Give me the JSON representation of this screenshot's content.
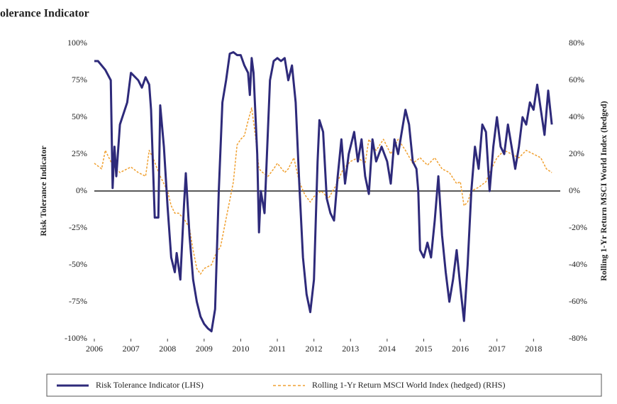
{
  "chart_data": {
    "type": "line",
    "title": "olerance Indicator",
    "ylabel": "Risk Tolerance Indicator",
    "y2label": "Rolling 1-Yr Return MSCI World Index (hedged)",
    "xlim": [
      2006,
      2018.73
    ],
    "xticks": [
      2006,
      2007,
      2008,
      2009,
      2010,
      2011,
      2012,
      2013,
      2014,
      2015,
      2016,
      2017,
      2018
    ],
    "ylim": [
      -100,
      100
    ],
    "yticks": [
      {
        "value": -100,
        "label": "-100%"
      },
      {
        "value": -75,
        "label": "-75%"
      },
      {
        "value": -50,
        "label": "-50%"
      },
      {
        "value": -25,
        "label": "-25%"
      },
      {
        "value": 0,
        "label": "0%"
      },
      {
        "value": 25,
        "label": "25%"
      },
      {
        "value": 50,
        "label": "50%"
      },
      {
        "value": 75,
        "label": "75%"
      },
      {
        "value": 100,
        "label": "100%"
      }
    ],
    "y2lim": [
      -80,
      80
    ],
    "y2ticks": [
      {
        "value": -80,
        "label": "-80%"
      },
      {
        "value": -60,
        "label": "-60%"
      },
      {
        "value": -40,
        "label": "-40%"
      },
      {
        "value": -20,
        "label": "-20%"
      },
      {
        "value": 0,
        "label": "0%"
      },
      {
        "value": 20,
        "label": "20%"
      },
      {
        "value": 40,
        "label": "40%"
      },
      {
        "value": 60,
        "label": "60%"
      },
      {
        "value": 80,
        "label": "80%"
      }
    ],
    "legend": "bottom",
    "series": [
      {
        "name": "Risk Tolerance Indicator (LHS)",
        "color": "#2e2a7a",
        "dash": false,
        "x": [
          2006.0,
          2006.1,
          2006.3,
          2006.45,
          2006.5,
          2006.55,
          2006.6,
          2006.7,
          2006.9,
          2007.0,
          2007.2,
          2007.3,
          2007.4,
          2007.5,
          2007.55,
          2007.65,
          2007.75,
          2007.8,
          2007.9,
          2008.0,
          2008.1,
          2008.2,
          2008.25,
          2008.35,
          2008.45,
          2008.5,
          2008.6,
          2008.7,
          2008.8,
          2008.9,
          2009.0,
          2009.1,
          2009.2,
          2009.3,
          2009.4,
          2009.5,
          2009.6,
          2009.7,
          2009.8,
          2009.9,
          2010.0,
          2010.1,
          2010.2,
          2010.25,
          2010.3,
          2010.35,
          2010.45,
          2010.5,
          2010.55,
          2010.65,
          2010.8,
          2010.9,
          2011.0,
          2011.1,
          2011.2,
          2011.3,
          2011.4,
          2011.5,
          2011.6,
          2011.7,
          2011.8,
          2011.9,
          2012.0,
          2012.1,
          2012.15,
          2012.25,
          2012.35,
          2012.45,
          2012.55,
          2012.65,
          2012.75,
          2012.85,
          2012.95,
          2013.1,
          2013.2,
          2013.3,
          2013.4,
          2013.5,
          2013.6,
          2013.7,
          2013.85,
          2014.0,
          2014.1,
          2014.2,
          2014.3,
          2014.4,
          2014.5,
          2014.6,
          2014.7,
          2014.8,
          2014.85,
          2014.9,
          2015.0,
          2015.1,
          2015.2,
          2015.3,
          2015.4,
          2015.5,
          2015.6,
          2015.7,
          2015.8,
          2015.9,
          2016.0,
          2016.1,
          2016.2,
          2016.3,
          2016.4,
          2016.5,
          2016.6,
          2016.7,
          2016.8,
          2016.9,
          2017.0,
          2017.1,
          2017.2,
          2017.3,
          2017.4,
          2017.5,
          2017.6,
          2017.7,
          2017.8,
          2017.9,
          2018.0,
          2018.1,
          2018.2,
          2018.3,
          2018.4,
          2018.5
        ],
        "values": [
          88,
          88,
          82,
          75,
          2,
          30,
          10,
          45,
          60,
          80,
          75,
          70,
          77,
          72,
          55,
          -18,
          -18,
          58,
          30,
          -10,
          -45,
          -55,
          -42,
          -60,
          -10,
          12,
          -30,
          -60,
          -75,
          -85,
          -90,
          -93,
          -95,
          -80,
          0,
          60,
          75,
          93,
          94,
          92,
          92,
          85,
          80,
          65,
          90,
          80,
          25,
          -28,
          0,
          -15,
          75,
          88,
          90,
          88,
          90,
          75,
          85,
          60,
          5,
          -45,
          -70,
          -82,
          -60,
          20,
          48,
          40,
          -5,
          -15,
          -20,
          10,
          35,
          5,
          25,
          40,
          20,
          35,
          10,
          -2,
          35,
          20,
          30,
          20,
          5,
          35,
          25,
          40,
          55,
          45,
          20,
          15,
          0,
          -40,
          -45,
          -35,
          -45,
          -20,
          10,
          -30,
          -55,
          -75,
          -60,
          -40,
          -65,
          -88,
          -50,
          0,
          30,
          15,
          45,
          40,
          0,
          30,
          50,
          30,
          25,
          45,
          30,
          15,
          30,
          50,
          45,
          60,
          55,
          72,
          55,
          38,
          68,
          45
        ]
      },
      {
        "name": "Rolling 1-Yr Return MSCI World Index (hedged) (RHS)",
        "color": "#f0a030",
        "dash": true,
        "axis": "y2",
        "x": [
          2006.0,
          2006.2,
          2006.3,
          2006.5,
          2006.7,
          2006.9,
          2007.0,
          2007.2,
          2007.4,
          2007.5,
          2007.6,
          2007.8,
          2008.0,
          2008.1,
          2008.2,
          2008.3,
          2008.45,
          2008.6,
          2008.7,
          2008.8,
          2008.9,
          2009.0,
          2009.2,
          2009.3,
          2009.45,
          2009.6,
          2009.7,
          2009.8,
          2009.9,
          2010.0,
          2010.1,
          2010.2,
          2010.3,
          2010.4,
          2010.5,
          2010.6,
          2010.75,
          2010.9,
          2011.0,
          2011.2,
          2011.3,
          2011.45,
          2011.6,
          2011.75,
          2011.9,
          2012.0,
          2012.2,
          2012.4,
          2012.6,
          2012.8,
          2013.0,
          2013.2,
          2013.4,
          2013.5,
          2013.7,
          2013.9,
          2014.1,
          2014.3,
          2014.5,
          2014.7,
          2014.9,
          2015.1,
          2015.3,
          2015.5,
          2015.7,
          2015.9,
          2016.0,
          2016.1,
          2016.2,
          2016.3,
          2016.5,
          2016.7,
          2016.8,
          2017.0,
          2017.2,
          2017.4,
          2017.6,
          2017.8,
          2018.0,
          2018.2,
          2018.35,
          2018.5
        ],
        "values": [
          15,
          12,
          22,
          14,
          10,
          12,
          13,
          10,
          8,
          22,
          18,
          8,
          0,
          -8,
          -12,
          -12,
          -15,
          -20,
          -32,
          -42,
          -45,
          -42,
          -40,
          -35,
          -30,
          -15,
          -5,
          5,
          25,
          28,
          30,
          38,
          45,
          30,
          12,
          10,
          8,
          12,
          15,
          10,
          12,
          18,
          5,
          -2,
          -6,
          -3,
          0,
          -4,
          3,
          12,
          16,
          18,
          15,
          28,
          22,
          28,
          20,
          28,
          22,
          15,
          18,
          14,
          18,
          12,
          10,
          4,
          5,
          -8,
          -6,
          0,
          2,
          5,
          10,
          18,
          22,
          20,
          18,
          22,
          20,
          18,
          12,
          10
        ]
      }
    ]
  }
}
